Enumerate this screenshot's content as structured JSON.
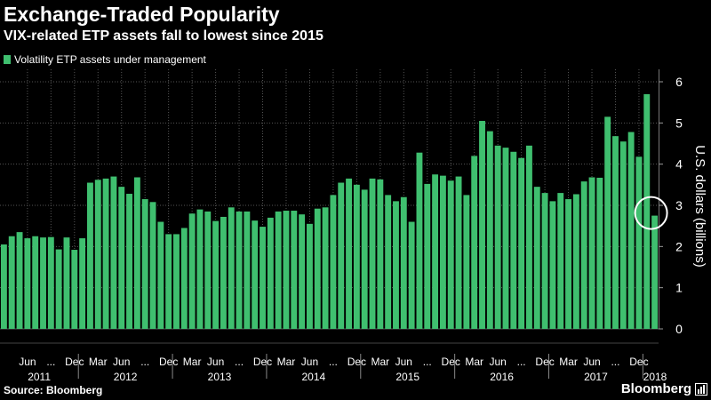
{
  "header": {
    "title": "Exchange-Traded Popularity",
    "subtitle": "VIX-related ETP assets fall to lowest since 2015"
  },
  "footer": {
    "source": "Source: Bloomberg",
    "brand": "Bloomberg"
  },
  "colors": {
    "background": "#000000",
    "bar": "#3fbf6f",
    "grid": "#555555",
    "text": "#ffffff"
  },
  "chart_data": {
    "type": "bar",
    "title": "Exchange-Traded Popularity",
    "subtitle": "VIX-related ETP assets fall to lowest since 2015",
    "ylabel": "U.S. dollars (billions)",
    "ylim": [
      0,
      6
    ],
    "yticks": [
      "0",
      "1",
      "2",
      "3",
      "4",
      "5",
      "6"
    ],
    "grid": true,
    "legend": "top-left",
    "start": "2011-03",
    "frequency": "monthly",
    "series": [
      {
        "name": "Volatility ETP assets under management",
        "values": [
          2.05,
          2.25,
          2.35,
          2.2,
          2.25,
          2.22,
          2.23,
          1.93,
          2.22,
          1.92,
          2.2,
          3.55,
          3.62,
          3.65,
          3.7,
          3.45,
          3.28,
          3.68,
          3.15,
          3.08,
          2.6,
          2.3,
          2.3,
          2.45,
          2.8,
          2.9,
          2.85,
          2.62,
          2.72,
          2.95,
          2.85,
          2.85,
          2.63,
          2.48,
          2.7,
          2.85,
          2.87,
          2.87,
          2.78,
          2.55,
          2.92,
          2.95,
          3.25,
          3.55,
          3.65,
          3.5,
          3.38,
          3.65,
          3.63,
          3.25,
          3.1,
          3.2,
          2.6,
          4.28,
          3.52,
          3.75,
          3.72,
          3.6,
          3.7,
          3.25,
          4.2,
          5.05,
          4.8,
          4.45,
          4.4,
          4.3,
          4.15,
          4.45,
          3.45,
          3.3,
          3.1,
          3.3,
          3.15,
          3.27,
          3.58,
          3.68,
          3.67,
          5.15,
          4.68,
          4.55,
          4.78,
          4.18,
          5.7,
          2.75
        ]
      }
    ],
    "x_tick_labels": [
      "Jun",
      "...",
      "Dec",
      "Mar",
      "Jun",
      "...",
      "Dec",
      "Mar",
      "Jun",
      "...",
      "Dec",
      "Mar",
      "Jun",
      "...",
      "Dec",
      "Mar",
      "Jun",
      "...",
      "Dec",
      "Mar",
      "Jun",
      "...",
      "Dec",
      "Mar",
      "Jun",
      "...",
      "Dec"
    ],
    "x_tick_months": [
      "2011-06",
      "2011-09",
      "2011-12",
      "2012-03",
      "2012-06",
      "2012-09",
      "2012-12",
      "2013-03",
      "2013-06",
      "2013-09",
      "2013-12",
      "2014-03",
      "2014-06",
      "2014-09",
      "2014-12",
      "2015-03",
      "2015-06",
      "2015-09",
      "2015-12",
      "2016-03",
      "2016-06",
      "2016-09",
      "2016-12",
      "2017-03",
      "2017-06",
      "2017-09",
      "2017-12"
    ],
    "year_labels": [
      "2011",
      "2012",
      "2013",
      "2014",
      "2015",
      "2016",
      "2017",
      "2018"
    ],
    "annotations": [
      {
        "type": "circle",
        "target": "last-bar"
      }
    ]
  }
}
